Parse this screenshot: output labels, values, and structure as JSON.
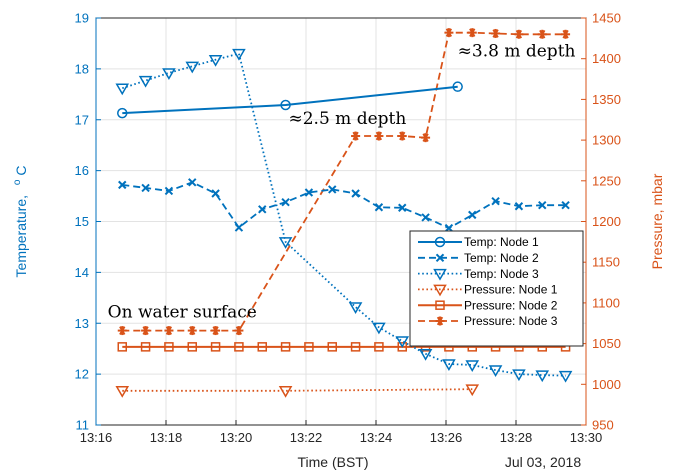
{
  "chart_data": {
    "type": "line",
    "xlabel": "Time (BST)",
    "date_label": "Jul 03, 2018",
    "ylabel_left": "Temperature, °C",
    "ylabel_left_text": "Temperature,",
    "ylabel_left_unit_sup": "o",
    "ylabel_left_unit": "C",
    "ylabel_right": "Pressure, mbar",
    "xlim": [
      "13:16",
      "13:30"
    ],
    "ylim_left": [
      11,
      19
    ],
    "ylim_right": [
      950,
      1450
    ],
    "xticks": [
      "13:16",
      "13:18",
      "13:20",
      "13:22",
      "13:24",
      "13:26",
      "13:28",
      "13:30"
    ],
    "yticks_left": [
      11,
      12,
      13,
      14,
      15,
      16,
      17,
      18,
      19
    ],
    "yticks_right": [
      950,
      1000,
      1050,
      1100,
      1150,
      1200,
      1250,
      1300,
      1350,
      1400,
      1450
    ],
    "grid": true,
    "legend_position": "center-right",
    "colors": {
      "temperature": "#0072BD",
      "pressure": "#D95319"
    },
    "series": [
      {
        "name": "Temp: Node 1",
        "axis": "left",
        "line": "solid",
        "marker": "circle",
        "x": [
          "13:16:45",
          "13:21:25",
          "13:26:20"
        ],
        "y": [
          17.13,
          17.29,
          17.65
        ]
      },
      {
        "name": "Temp: Node 2",
        "axis": "left",
        "line": "dashed",
        "marker": "x",
        "x": [
          "13:16:45",
          "13:17:25",
          "13:18:05",
          "13:18:45",
          "13:19:25",
          "13:20:05",
          "13:20:45",
          "13:21:25",
          "13:22:05",
          "13:22:45",
          "13:23:25",
          "13:24:05",
          "13:24:45",
          "13:25:25",
          "13:26:05",
          "13:26:45",
          "13:27:25",
          "13:28:05",
          "13:28:45",
          "13:29:25"
        ],
        "y": [
          15.72,
          15.66,
          15.6,
          15.77,
          15.55,
          14.88,
          15.24,
          15.38,
          15.57,
          15.63,
          15.55,
          15.28,
          15.27,
          15.08,
          14.87,
          15.13,
          15.4,
          15.3,
          15.32,
          15.32
        ]
      },
      {
        "name": "Temp: Node 3",
        "axis": "left",
        "line": "dotted",
        "marker": "triangle-down",
        "x": [
          "13:16:45",
          "13:17:25",
          "13:18:05",
          "13:18:45",
          "13:19:25",
          "13:20:05",
          "13:21:25",
          "13:23:25",
          "13:24:05",
          "13:24:45",
          "13:25:25",
          "13:26:05",
          "13:26:45",
          "13:27:25",
          "13:28:05",
          "13:28:45",
          "13:29:25"
        ],
        "y": [
          17.62,
          17.77,
          17.92,
          18.05,
          18.18,
          18.3,
          14.6,
          13.32,
          12.92,
          12.65,
          12.4,
          12.2,
          12.18,
          12.08,
          12.0,
          11.98,
          11.97
        ]
      },
      {
        "name": "Pressure: Node 1",
        "axis": "right",
        "line": "dotted",
        "marker": "triangle-down",
        "x": [
          "13:16:45",
          "13:21:25",
          "13:26:45"
        ],
        "y": [
          992,
          992,
          994
        ]
      },
      {
        "name": "Pressure: Node 2",
        "axis": "right",
        "line": "solid",
        "marker": "square",
        "x": [
          "13:16:45",
          "13:17:25",
          "13:18:05",
          "13:18:45",
          "13:19:25",
          "13:20:05",
          "13:20:45",
          "13:21:25",
          "13:22:05",
          "13:22:45",
          "13:23:25",
          "13:24:05",
          "13:24:45",
          "13:25:25",
          "13:26:05",
          "13:26:45",
          "13:27:25",
          "13:28:05",
          "13:28:45",
          "13:29:25"
        ],
        "y": [
          1046,
          1046,
          1046,
          1046,
          1046,
          1046,
          1046,
          1046,
          1046,
          1046,
          1046,
          1046,
          1046,
          1046,
          1046,
          1046,
          1046,
          1046,
          1046,
          1046
        ]
      },
      {
        "name": "Pressure: Node 3",
        "axis": "right",
        "line": "dashed",
        "marker": "asterisk",
        "x": [
          "13:16:45",
          "13:17:25",
          "13:18:05",
          "13:18:45",
          "13:19:25",
          "13:20:05",
          "13:23:25",
          "13:24:05",
          "13:24:45",
          "13:25:25",
          "13:26:05",
          "13:26:45",
          "13:27:25",
          "13:28:05",
          "13:28:45",
          "13:29:25"
        ],
        "y": [
          1066,
          1066,
          1066,
          1066,
          1066,
          1066,
          1305,
          1305,
          1305,
          1303,
          1432,
          1432,
          1431,
          1430,
          1430,
          1430
        ]
      }
    ],
    "annotations": [
      {
        "text": "On water surface",
        "x": "13:16:20",
        "y_right": 1082
      },
      {
        "text": "≈2.5 m depth",
        "x": "13:21:30",
        "y_right": 1320
      },
      {
        "text": "≈3.8 m depth",
        "x": "13:26:20",
        "y_right": 1403
      }
    ]
  }
}
